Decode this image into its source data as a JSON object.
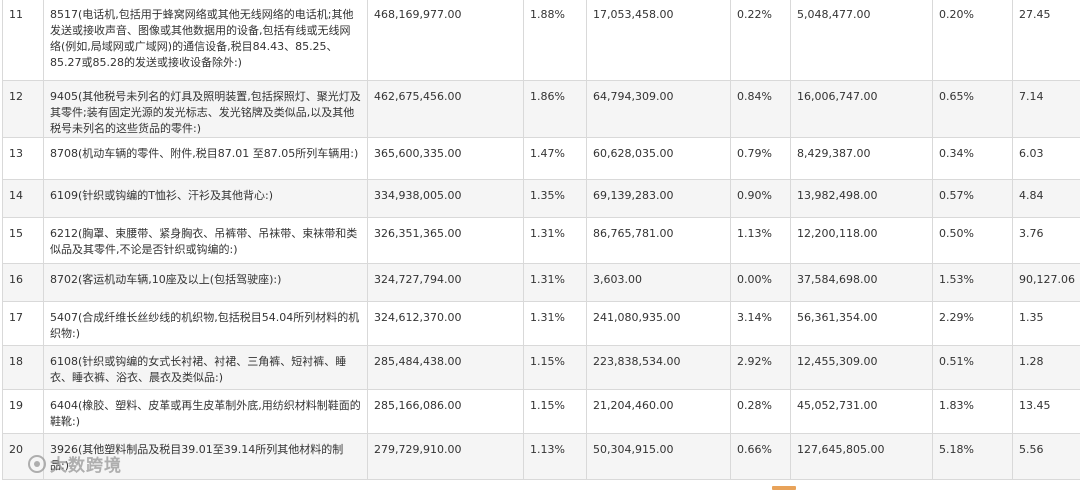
{
  "rows": [
    {
      "rank": "11",
      "product": "8517(电话机,包括用于蜂窝网络或其他无线网络的电话机;其他发送或接收声音、图像或其他数据用的设备,包括有线或无线网络(例如,局域网或广域网)的通信设备,税目84.43、85.25、85.27或85.28的发送或接收设备除外:)",
      "value": "468,169,977.00",
      "share": "1.88%",
      "value2": "17,053,458.00",
      "share2": "0.22%",
      "value3": "5,048,477.00",
      "share3": "0.20%",
      "ratio": "27.45"
    },
    {
      "rank": "12",
      "product": "9405(其他税号未列名的灯具及照明装置,包括探照灯、聚光灯及其零件;装有固定光源的发光标志、发光铭牌及类似品,以及其他税号未列名的这些货品的零件:)",
      "value": "462,675,456.00",
      "share": "1.86%",
      "value2": "64,794,309.00",
      "share2": "0.84%",
      "value3": "16,006,747.00",
      "share3": "0.65%",
      "ratio": "7.14"
    },
    {
      "rank": "13",
      "product": "8708(机动车辆的零件、附件,税目87.01 至87.05所列车辆用:)",
      "value": "365,600,335.00",
      "share": "1.47%",
      "value2": "60,628,035.00",
      "share2": "0.79%",
      "value3": "8,429,387.00",
      "share3": "0.34%",
      "ratio": "6.03"
    },
    {
      "rank": "14",
      "product": "6109(针织或钩编的T恤衫、汗衫及其他背心:)",
      "value": "334,938,005.00",
      "share": "1.35%",
      "value2": "69,139,283.00",
      "share2": "0.90%",
      "value3": "13,982,498.00",
      "share3": "0.57%",
      "ratio": "4.84"
    },
    {
      "rank": "15",
      "product": "6212(胸罩、束腰带、紧身胸衣、吊裤带、吊袜带、束袜带和类似品及其零件,不论是否针织或钩编的:)",
      "value": "326,351,365.00",
      "share": "1.31%",
      "value2": "86,765,781.00",
      "share2": "1.13%",
      "value3": "12,200,118.00",
      "share3": "0.50%",
      "ratio": "3.76"
    },
    {
      "rank": "16",
      "product": "8702(客运机动车辆,10座及以上(包括驾驶座):)",
      "value": "324,727,794.00",
      "share": "1.31%",
      "value2": "3,603.00",
      "share2": "0.00%",
      "value3": "37,584,698.00",
      "share3": "1.53%",
      "ratio": "90,127.06"
    },
    {
      "rank": "17",
      "product": "5407(合成纤维长丝纱线的机织物,包括税目54.04所列材料的机织物:)",
      "value": "324,612,370.00",
      "share": "1.31%",
      "value2": "241,080,935.00",
      "share2": "3.14%",
      "value3": "56,361,354.00",
      "share3": "2.29%",
      "ratio": "1.35"
    },
    {
      "rank": "18",
      "product": "6108(针织或钩编的女式长衬裙、衬裙、三角裤、短衬裤、睡衣、睡衣裤、浴衣、晨衣及类似品:)",
      "value": "285,484,438.00",
      "share": "1.15%",
      "value2": "223,838,534.00",
      "share2": "2.92%",
      "value3": "12,455,309.00",
      "share3": "0.51%",
      "ratio": "1.28"
    },
    {
      "rank": "19",
      "product": "6404(橡胶、塑料、皮革或再生皮革制外底,用纺织材料制鞋面的鞋靴:)",
      "value": "285,166,086.00",
      "share": "1.15%",
      "value2": "21,204,460.00",
      "share2": "0.28%",
      "value3": "45,052,731.00",
      "share3": "1.83%",
      "ratio": "13.45"
    },
    {
      "rank": "20",
      "product": "3926(其他塑料制品及税目39.01至39.14所列其他材料的制品:)",
      "value": "279,729,910.00",
      "share": "1.13%",
      "value2": "50,304,915.00",
      "share2": "0.66%",
      "value3": "127,645,805.00",
      "share3": "5.18%",
      "ratio": "5.56"
    }
  ],
  "watermark": "大数跨境"
}
